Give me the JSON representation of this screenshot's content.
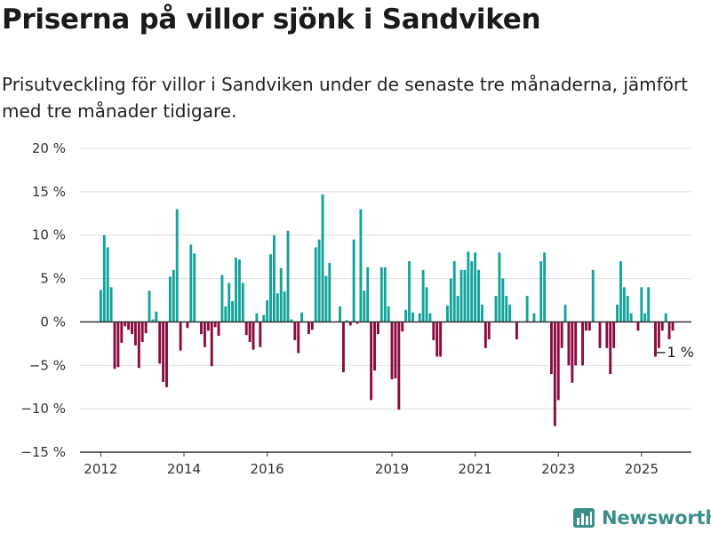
{
  "title": "Priserna på villor sjönk i Sandviken",
  "subtitle": "Prisutveckling för villor i Sandviken under de senaste tre månaderna, jämfört med tre månader tidigare.",
  "brand": {
    "name": "Newsworthy",
    "icon": "newsworthy-logo-icon"
  },
  "colors": {
    "positive": "#12a39a",
    "negative": "#8b0a3f",
    "grid": "#dddddd",
    "axis": "#333333"
  },
  "chart_data": {
    "type": "bar",
    "ylim": [
      -15,
      20
    ],
    "yticks": [
      20,
      15,
      10,
      5,
      0,
      -5,
      -10,
      -15
    ],
    "ytick_labels": [
      "20 %",
      "15 %",
      "10 %",
      "5 %",
      "0 %",
      "−5 %",
      "−10 %",
      "−15 %"
    ],
    "xlim": [
      2011.5,
      2026.2
    ],
    "xticks": [
      2012,
      2014,
      2016,
      2019,
      2021,
      2023,
      2025
    ],
    "xtick_labels": [
      "2012",
      "2014",
      "2016",
      "2019",
      "2021",
      "2023",
      "2025"
    ],
    "grid": true,
    "end_label": "−1 %",
    "x_start": "2012-01",
    "x_step": "1 month",
    "values": [
      3.7,
      10,
      8.6,
      4,
      -5.4,
      -5.2,
      -2.4,
      -0.5,
      -0.9,
      -1.4,
      -2.7,
      -5.3,
      -2.3,
      -1.3,
      3.6,
      0.3,
      1.2,
      -4.8,
      -6.9,
      -7.5,
      5.2,
      6,
      13,
      -3.3,
      0,
      -0.7,
      8.9,
      7.9,
      0,
      -1.4,
      -2.9,
      -1,
      -5.1,
      -0.6,
      -1.6,
      5.4,
      1.8,
      4.5,
      2.4,
      7.4,
      7.2,
      4.5,
      -1.5,
      -2.3,
      -3.2,
      1,
      -2.9,
      0.8,
      2.5,
      7.8,
      10,
      3.3,
      6.2,
      3.5,
      10.5,
      0.3,
      -2.1,
      -3.6,
      1.1,
      0,
      -1.4,
      -0.9,
      8.6,
      9.5,
      14.7,
      5.3,
      6.8,
      0,
      0,
      1.8,
      -5.8,
      0.2,
      -0.4,
      9.5,
      -0.2,
      13,
      3.6,
      6.3,
      -9,
      -5.6,
      -1.4,
      6.3,
      6.3,
      1.8,
      -6.6,
      -6.5,
      -10.1,
      -1.1,
      1.4,
      7,
      1.1,
      0,
      1,
      6,
      4,
      1,
      -2.1,
      -4,
      -4,
      0,
      1.9,
      5,
      7,
      3,
      6,
      6,
      8.1,
      7,
      8,
      6,
      2,
      -3,
      -2,
      0,
      3,
      8,
      5,
      3,
      2,
      0,
      -2,
      0,
      0,
      3,
      0,
      1,
      0,
      7,
      8,
      0,
      -6,
      -12,
      -9,
      -3,
      2,
      -5,
      -7,
      -5,
      0,
      -5,
      -1,
      -1,
      6,
      0,
      -3,
      0,
      -3,
      -6,
      -3,
      2,
      7,
      4,
      3,
      1,
      0,
      -1,
      4,
      1,
      4,
      0,
      -4,
      -3,
      -1,
      1,
      -2,
      -1
    ]
  }
}
